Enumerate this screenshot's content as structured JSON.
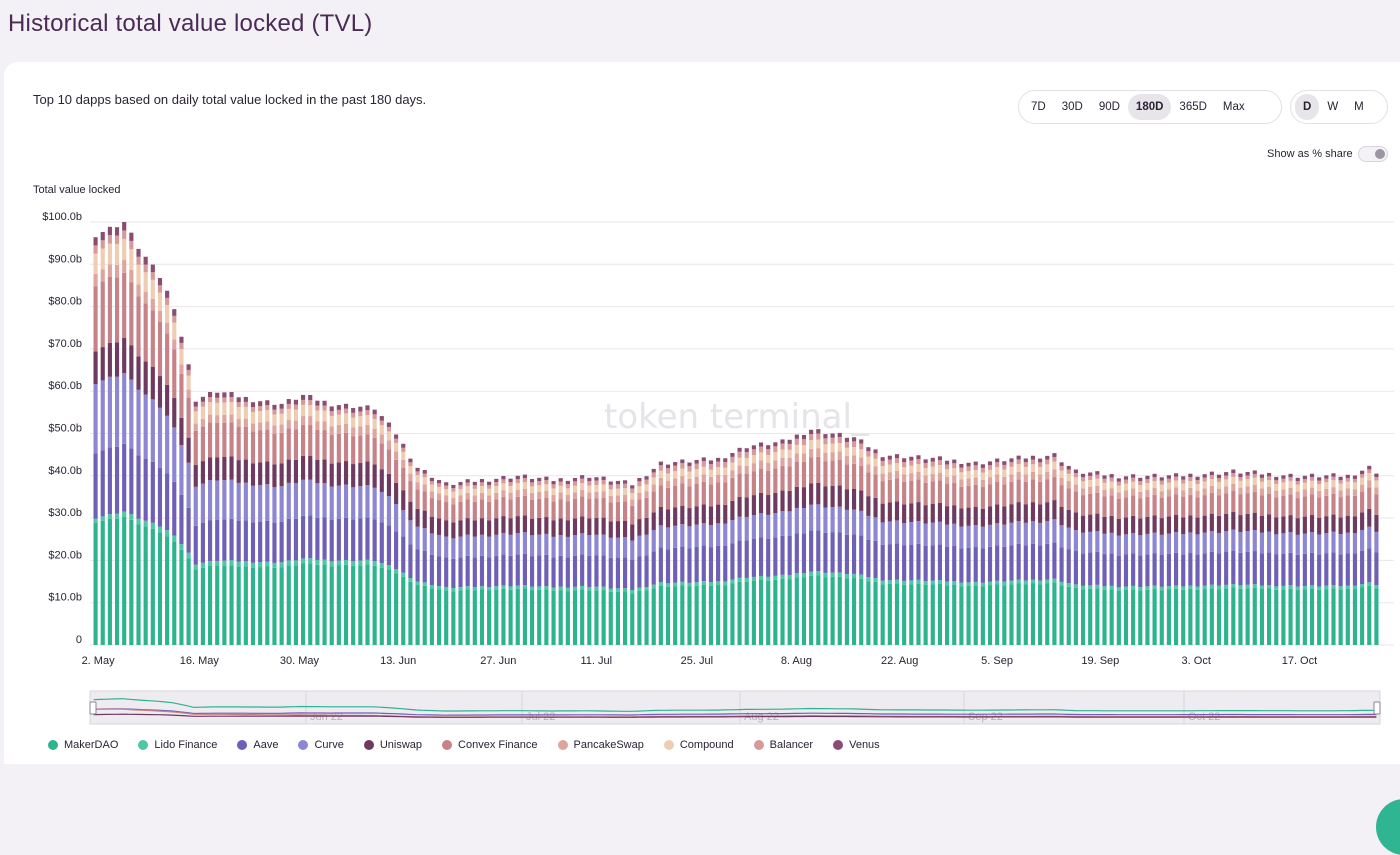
{
  "page": {
    "title": "Historical total value locked (TVL)",
    "subtitle": "Top 10 dapps based on daily total value locked in the past 180 days."
  },
  "controls": {
    "ranges": [
      "7D",
      "30D",
      "90D",
      "180D",
      "365D",
      "Max"
    ],
    "active_range": "180D",
    "intervals": [
      "D",
      "W",
      "M"
    ],
    "active_interval": "D",
    "share_toggle_label": "Show as % share",
    "share_toggle_on": false
  },
  "watermark": "token terminal_",
  "navigator": {
    "labels": [
      "Jun 22",
      "Jul 22",
      "Aug 22",
      "Sep 22",
      "Oct 22"
    ]
  },
  "colors": {
    "MakerDAO": "#2eb38f",
    "Lido Finance": "#4fc6a6",
    "Aave": "#6e5fb7",
    "Curve": "#8c86d3",
    "Uniswap": "#6e3a5f",
    "Convex Finance": "#c78287",
    "PancakeSwap": "#dea59f",
    "Compound": "#efcdb3",
    "Balancer": "#d79a9a",
    "Venus": "#8a4c72"
  },
  "chart_data": {
    "type": "bar",
    "stacked": true,
    "ylabel": "Total value locked",
    "ylim": [
      0,
      100
    ],
    "y_unit": "b",
    "yticks": [
      "0",
      "$10.0b",
      "$20.0b",
      "$30.0b",
      "$40.0b",
      "$50.0b",
      "$60.0b",
      "$70.0b",
      "$80.0b",
      "$90.0b",
      "$100.0b"
    ],
    "x_axis": {
      "type": "date",
      "start": "2022-05-02",
      "end": "2022-10-28",
      "tick_labels": [
        "2. May",
        "16. May",
        "30. May",
        "13. Jun",
        "27. Jun",
        "11. Jul",
        "25. Jul",
        "8. Aug",
        "22. Aug",
        "5. Sep",
        "19. Sep",
        "3. Oct",
        "17. Oct"
      ]
    },
    "legend": [
      "MakerDAO",
      "Lido Finance",
      "Aave",
      "Curve",
      "Uniswap",
      "Convex Finance",
      "PancakeSwap",
      "Compound",
      "Balancer",
      "Venus"
    ],
    "grid": true,
    "total_anchors": [
      {
        "date": "2022-05-02",
        "total": 97
      },
      {
        "date": "2022-05-06",
        "total": 100
      },
      {
        "date": "2022-05-08",
        "total": 94
      },
      {
        "date": "2022-05-11",
        "total": 87
      },
      {
        "date": "2022-05-13",
        "total": 80
      },
      {
        "date": "2022-05-15",
        "total": 66
      },
      {
        "date": "2022-05-16",
        "total": 58
      },
      {
        "date": "2022-05-19",
        "total": 60
      },
      {
        "date": "2022-05-24",
        "total": 58
      },
      {
        "date": "2022-05-28",
        "total": 57
      },
      {
        "date": "2022-05-31",
        "total": 59
      },
      {
        "date": "2022-06-04",
        "total": 57
      },
      {
        "date": "2022-06-10",
        "total": 56
      },
      {
        "date": "2022-06-13",
        "total": 50
      },
      {
        "date": "2022-06-16",
        "total": 42
      },
      {
        "date": "2022-06-20",
        "total": 38
      },
      {
        "date": "2022-06-25",
        "total": 39
      },
      {
        "date": "2022-06-30",
        "total": 40
      },
      {
        "date": "2022-07-05",
        "total": 39
      },
      {
        "date": "2022-07-10",
        "total": 40
      },
      {
        "date": "2022-07-16",
        "total": 38
      },
      {
        "date": "2022-07-20",
        "total": 43
      },
      {
        "date": "2022-07-28",
        "total": 44
      },
      {
        "date": "2022-08-01",
        "total": 47
      },
      {
        "date": "2022-08-06",
        "total": 48
      },
      {
        "date": "2022-08-10",
        "total": 51
      },
      {
        "date": "2022-08-16",
        "total": 49
      },
      {
        "date": "2022-08-20",
        "total": 45
      },
      {
        "date": "2022-08-28",
        "total": 44
      },
      {
        "date": "2022-09-02",
        "total": 43
      },
      {
        "date": "2022-09-07",
        "total": 44
      },
      {
        "date": "2022-09-13",
        "total": 45
      },
      {
        "date": "2022-09-16",
        "total": 41
      },
      {
        "date": "2022-09-22",
        "total": 40
      },
      {
        "date": "2022-09-30",
        "total": 40
      },
      {
        "date": "2022-10-08",
        "total": 41
      },
      {
        "date": "2022-10-17",
        "total": 40
      },
      {
        "date": "2022-10-24",
        "total": 40
      },
      {
        "date": "2022-10-27",
        "total": 42
      },
      {
        "date": "2022-10-28",
        "total": 41
      }
    ],
    "series_share_anchors": [
      {
        "date": "2022-05-02",
        "shares": {
          "MakerDAO": 0.3,
          "Lido Finance": 0.01,
          "Aave": 0.16,
          "Curve": 0.17,
          "Uniswap": 0.08,
          "Convex Finance": 0.16,
          "PancakeSwap": 0.03,
          "Compound": 0.05,
          "Balancer": 0.02,
          "Venus": 0.02
        }
      },
      {
        "date": "2022-05-16",
        "shares": {
          "MakerDAO": 0.31,
          "Lido Finance": 0.02,
          "Aave": 0.16,
          "Curve": 0.16,
          "Uniswap": 0.09,
          "Convex Finance": 0.14,
          "PancakeSwap": 0.03,
          "Compound": 0.05,
          "Balancer": 0.02,
          "Venus": 0.02
        }
      },
      {
        "date": "2022-06-13",
        "shares": {
          "MakerDAO": 0.34,
          "Lido Finance": 0.02,
          "Aave": 0.18,
          "Curve": 0.13,
          "Uniswap": 0.1,
          "Convex Finance": 0.11,
          "PancakeSwap": 0.04,
          "Compound": 0.04,
          "Balancer": 0.02,
          "Venus": 0.02
        }
      },
      {
        "date": "2022-07-25",
        "shares": {
          "MakerDAO": 0.32,
          "Lido Finance": 0.02,
          "Aave": 0.19,
          "Curve": 0.12,
          "Uniswap": 0.1,
          "Convex Finance": 0.12,
          "PancakeSwap": 0.04,
          "Compound": 0.04,
          "Balancer": 0.03,
          "Venus": 0.02
        }
      },
      {
        "date": "2022-10-28",
        "shares": {
          "MakerDAO": 0.33,
          "Lido Finance": 0.02,
          "Aave": 0.19,
          "Curve": 0.12,
          "Uniswap": 0.1,
          "Convex Finance": 0.12,
          "PancakeSwap": 0.04,
          "Compound": 0.04,
          "Balancer": 0.02,
          "Venus": 0.02
        }
      }
    ]
  }
}
